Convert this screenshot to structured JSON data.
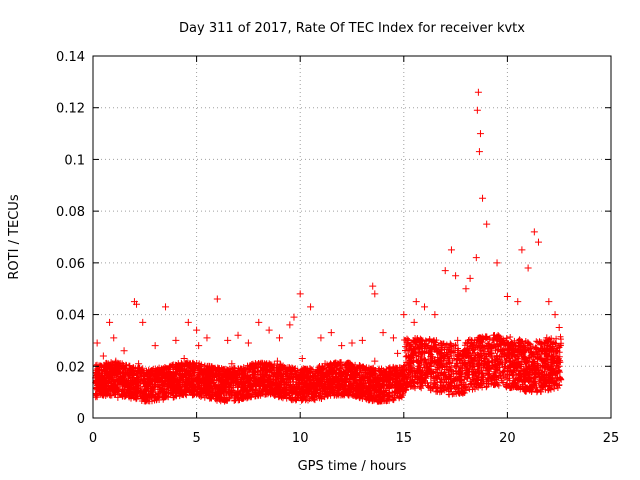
{
  "chart_data": {
    "type": "scatter",
    "title": "Day 311 of 2017, Rate Of TEC Index for receiver kvtx",
    "xlabel": "GPS time / hours",
    "ylabel": "ROTI / TECUs",
    "xlim": [
      0,
      25
    ],
    "ylim": [
      0,
      0.14
    ],
    "xticks": [
      0,
      5,
      10,
      15,
      20,
      25
    ],
    "xtick_labels": [
      "0",
      "5",
      "10",
      "15",
      "20",
      "25"
    ],
    "yticks": [
      0,
      0.02,
      0.04,
      0.06,
      0.08,
      0.1,
      0.12,
      0.14
    ],
    "ytick_labels": [
      "0",
      "0.02",
      "0.04",
      "0.06",
      "0.08",
      "0.1",
      "0.12",
      "0.14"
    ],
    "grid": true,
    "marker": "+",
    "color": "#ff0000",
    "series": [
      {
        "name": "ROTI",
        "x": [
          0.2,
          0.5,
          0.8,
          1.0,
          1.5,
          2.0,
          2.1,
          2.4,
          3.0,
          3.5,
          4.0,
          4.6,
          5.0,
          5.1,
          5.5,
          6.0,
          6.5,
          7.0,
          7.5,
          8.0,
          8.5,
          9.0,
          9.5,
          9.7,
          10.0,
          10.5,
          11.0,
          11.5,
          12.0,
          12.5,
          13.0,
          13.5,
          13.6,
          14.0,
          14.5,
          15.0,
          15.5,
          15.6,
          16.0,
          16.5,
          17.0,
          17.3,
          17.5,
          18.0,
          18.2,
          18.5,
          18.55,
          18.6,
          18.65,
          18.7,
          18.8,
          19.0,
          19.5,
          20.0,
          20.5,
          20.7,
          21.0,
          21.3,
          21.5,
          22.0,
          22.3,
          22.5,
          0.3,
          0.6,
          1.2,
          1.8,
          2.6,
          3.2,
          3.8,
          4.3,
          4.8,
          5.3,
          5.8,
          6.3,
          6.8,
          7.3,
          7.8,
          8.3,
          8.8,
          9.3,
          9.8,
          10.3,
          10.8,
          11.3,
          11.8,
          12.3,
          12.8,
          13.3,
          13.8,
          14.3,
          14.8,
          15.3,
          15.8,
          16.3,
          16.8,
          17.3,
          17.8,
          18.3,
          18.8,
          19.3,
          19.8,
          20.3,
          20.8,
          21.3,
          21.8,
          22.2,
          22.5,
          0.4,
          1.1,
          2.2,
          3.3,
          4.4,
          5.6,
          6.7,
          7.8,
          8.9,
          10.1,
          11.2,
          12.4,
          13.6,
          14.7,
          15.9,
          16.7,
          17.6,
          18.4,
          19.2,
          20.1,
          21.0,
          21.9,
          22.4
        ],
        "y": [
          0.029,
          0.024,
          0.037,
          0.031,
          0.026,
          0.045,
          0.044,
          0.037,
          0.028,
          0.043,
          0.03,
          0.037,
          0.034,
          0.028,
          0.031,
          0.046,
          0.03,
          0.032,
          0.029,
          0.037,
          0.034,
          0.031,
          0.036,
          0.039,
          0.048,
          0.043,
          0.031,
          0.033,
          0.028,
          0.029,
          0.03,
          0.051,
          0.048,
          0.033,
          0.031,
          0.04,
          0.037,
          0.045,
          0.043,
          0.04,
          0.057,
          0.065,
          0.055,
          0.05,
          0.054,
          0.062,
          0.119,
          0.126,
          0.103,
          0.11,
          0.085,
          0.075,
          0.06,
          0.047,
          0.045,
          0.065,
          0.058,
          0.072,
          0.068,
          0.045,
          0.04,
          0.035,
          0.01,
          0.012,
          0.008,
          0.011,
          0.009,
          0.013,
          0.01,
          0.012,
          0.009,
          0.011,
          0.01,
          0.012,
          0.009,
          0.011,
          0.01,
          0.012,
          0.009,
          0.011,
          0.01,
          0.012,
          0.011,
          0.01,
          0.013,
          0.011,
          0.012,
          0.01,
          0.011,
          0.012,
          0.013,
          0.014,
          0.015,
          0.016,
          0.015,
          0.017,
          0.016,
          0.018,
          0.017,
          0.016,
          0.018,
          0.017,
          0.019,
          0.02,
          0.019,
          0.018,
          0.02,
          0.02,
          0.022,
          0.021,
          0.019,
          0.023,
          0.02,
          0.021,
          0.019,
          0.022,
          0.023,
          0.021,
          0.02,
          0.022,
          0.025,
          0.027,
          0.028,
          0.03,
          0.029,
          0.027,
          0.028,
          0.029,
          0.031,
          0.027
        ]
      }
    ]
  }
}
